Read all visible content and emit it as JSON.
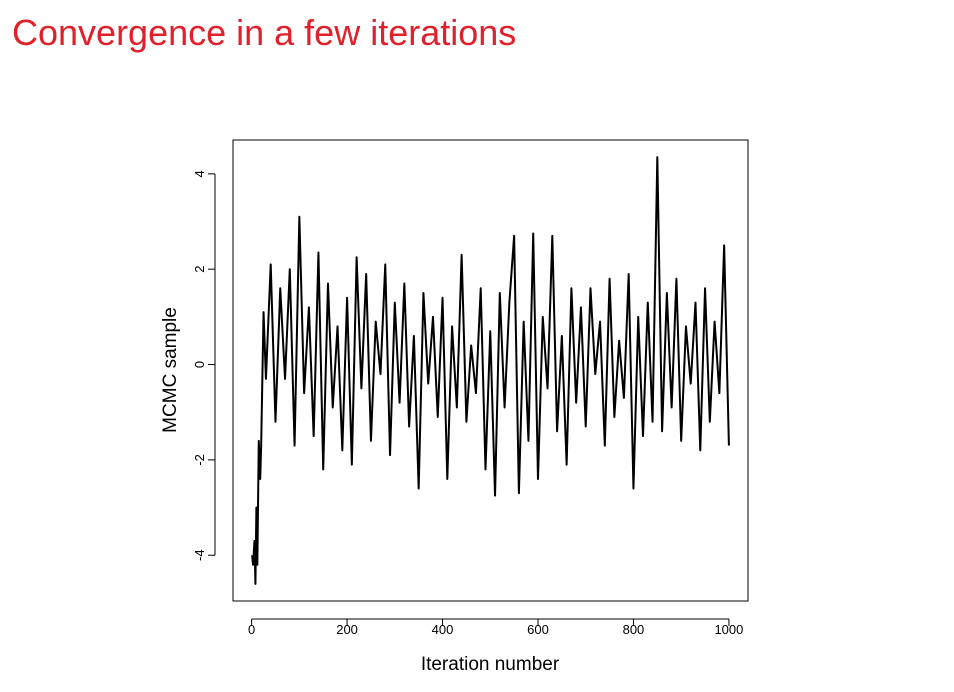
{
  "chart_data": {
    "type": "line",
    "title": "Convergence in a few iterations",
    "x_label": "Iteration number",
    "y_label": "MCMC sample",
    "xlim": [
      -39,
      1040
    ],
    "ylim": [
      -4.96,
      4.71
    ],
    "xticks": [
      0,
      200,
      400,
      600,
      800,
      1000
    ],
    "yticks": [
      -4,
      -2,
      0,
      2,
      4
    ],
    "color": "#000000",
    "x": [
      1,
      3,
      6,
      8,
      10,
      12,
      15,
      18,
      20,
      25,
      30,
      40,
      50,
      60,
      70,
      80,
      90,
      100,
      110,
      120,
      130,
      140,
      150,
      160,
      170,
      180,
      190,
      200,
      210,
      220,
      230,
      240,
      250,
      260,
      270,
      280,
      290,
      300,
      310,
      320,
      330,
      340,
      350,
      360,
      370,
      380,
      390,
      400,
      410,
      420,
      430,
      440,
      450,
      460,
      470,
      480,
      490,
      500,
      510,
      520,
      530,
      540,
      550,
      560,
      570,
      580,
      590,
      600,
      610,
      620,
      630,
      640,
      650,
      660,
      670,
      680,
      690,
      700,
      710,
      720,
      730,
      740,
      750,
      760,
      770,
      780,
      790,
      800,
      810,
      820,
      830,
      840,
      850,
      860,
      870,
      880,
      890,
      900,
      910,
      920,
      930,
      940,
      950,
      960,
      970,
      980,
      990,
      1000
    ],
    "values": [
      -4.0,
      -4.2,
      -3.7,
      -4.6,
      -3.0,
      -4.2,
      -1.6,
      -2.4,
      -1.7,
      1.1,
      -0.3,
      2.1,
      -1.2,
      1.6,
      -0.3,
      2.0,
      -1.7,
      3.1,
      -0.6,
      1.2,
      -1.5,
      2.35,
      -2.2,
      1.7,
      -0.9,
      0.8,
      -1.8,
      1.4,
      -2.1,
      2.25,
      -0.5,
      1.9,
      -1.6,
      0.9,
      -0.2,
      2.1,
      -1.9,
      1.3,
      -0.8,
      1.7,
      -1.3,
      0.6,
      -2.6,
      1.5,
      -0.4,
      1.0,
      -1.1,
      1.4,
      -2.4,
      0.8,
      -0.9,
      2.3,
      -1.2,
      0.4,
      -0.6,
      1.6,
      -2.2,
      0.7,
      -2.75,
      1.5,
      -0.9,
      1.3,
      2.7,
      -2.7,
      0.9,
      -1.6,
      2.75,
      -2.4,
      1.0,
      -0.5,
      2.7,
      -1.4,
      0.6,
      -2.1,
      1.6,
      -0.8,
      1.2,
      -1.3,
      1.6,
      -0.2,
      0.9,
      -1.7,
      1.8,
      -1.1,
      0.5,
      -0.7,
      1.9,
      -2.6,
      1.0,
      -1.5,
      1.3,
      -1.2,
      4.35,
      -1.4,
      1.5,
      -0.9,
      1.8,
      -1.6,
      0.8,
      -0.4,
      1.3,
      -1.8,
      1.6,
      -1.2,
      0.9,
      -0.6,
      2.5,
      -1.7
    ]
  }
}
